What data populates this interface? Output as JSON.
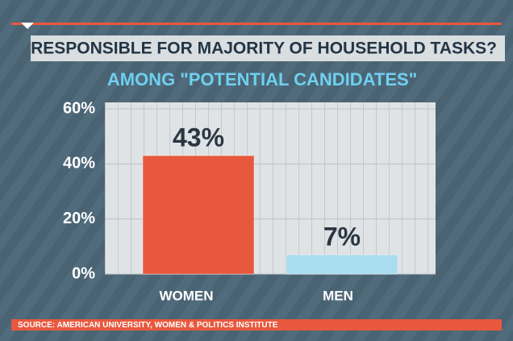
{
  "chart_data": {
    "type": "bar",
    "title": "RESPONSIBLE FOR MAJORITY OF HOUSEHOLD TASKS?",
    "subtitle": "AMONG \"POTENTIAL CANDIDATES\"",
    "categories": [
      "WOMEN",
      "MEN"
    ],
    "values": [
      43,
      7
    ],
    "value_labels": [
      "43%",
      "7%"
    ],
    "colors": [
      "#e8583e",
      "#a9dcef"
    ],
    "ylim": [
      0,
      60
    ],
    "yticks": [
      {
        "value": 0,
        "label": "0%"
      },
      {
        "value": 20,
        "label": "20%"
      },
      {
        "value": 40,
        "label": "40%"
      },
      {
        "value": 60,
        "label": "60%"
      }
    ],
    "grid": true,
    "source": "SOURCE: AMERICAN UNIVERSITY, WOMEN & POLITICS INSTITUTE"
  }
}
